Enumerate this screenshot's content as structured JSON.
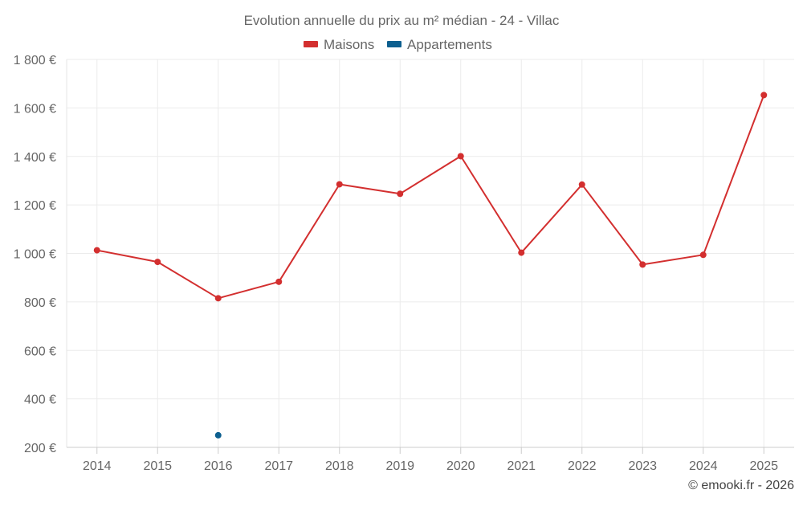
{
  "chart_data": {
    "type": "line",
    "title": "Evolution annuelle du prix au m² médian - 24 - Villac",
    "categories": [
      "2014",
      "2015",
      "2016",
      "2017",
      "2018",
      "2019",
      "2020",
      "2021",
      "2022",
      "2023",
      "2024",
      "2025"
    ],
    "series": [
      {
        "name": "Maisons",
        "color": "#d32f2f",
        "values": [
          1013,
          965,
          815,
          883,
          1285,
          1246,
          1401,
          1003,
          1284,
          954,
          994,
          1653
        ]
      },
      {
        "name": "Appartements",
        "color": "#0d5f8f",
        "values": [
          null,
          null,
          250,
          null,
          null,
          null,
          null,
          null,
          null,
          null,
          null,
          null
        ]
      }
    ],
    "ylim": [
      200,
      1800
    ],
    "yticks": [
      200,
      400,
      600,
      800,
      1000,
      1200,
      1400,
      1600,
      1800
    ],
    "ytick_labels": [
      "200 €",
      "400 €",
      "600 €",
      "800 €",
      "1 000 €",
      "1 200 €",
      "1 400 €",
      "1 600 €",
      "1 800 €"
    ],
    "xlabel": "",
    "ylabel": "",
    "grid": true,
    "legend_position": "top-center",
    "credit": "© emooki.fr - 2026"
  }
}
